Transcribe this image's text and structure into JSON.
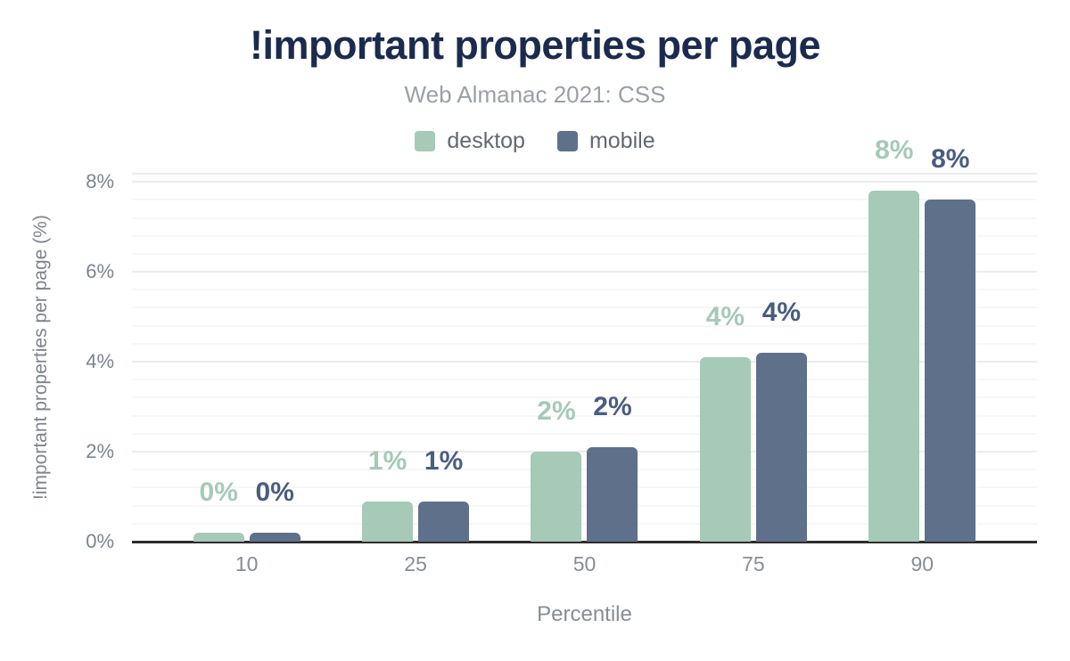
{
  "chart_data": {
    "type": "bar",
    "title": "!important properties per page",
    "subtitle": "Web Almanac 2021: CSS",
    "xlabel": "Percentile",
    "ylabel": "!important properties per page (%)",
    "categories": [
      "10",
      "25",
      "50",
      "75",
      "90"
    ],
    "series": [
      {
        "name": "desktop",
        "color": "#a6c9b8",
        "label_color": "#a6c9b8",
        "values": [
          0.2,
          0.9,
          2.0,
          4.1,
          7.8
        ],
        "labels": [
          "0%",
          "1%",
          "2%",
          "4%",
          "8%"
        ]
      },
      {
        "name": "mobile",
        "color": "#5f708a",
        "label_color": "#4a5d80",
        "values": [
          0.2,
          0.9,
          2.1,
          4.2,
          7.6
        ],
        "labels": [
          "0%",
          "1%",
          "2%",
          "4%",
          "8%"
        ]
      }
    ],
    "ylim": [
      0,
      8.2
    ],
    "yticks": [
      {
        "value": 0,
        "label": "0%"
      },
      {
        "value": 2,
        "label": "2%"
      },
      {
        "value": 4,
        "label": "4%"
      },
      {
        "value": 6,
        "label": "6%"
      },
      {
        "value": 8,
        "label": "8%"
      }
    ],
    "minor_step": 0.4,
    "grid": "horizontal",
    "legend_position": "top"
  }
}
